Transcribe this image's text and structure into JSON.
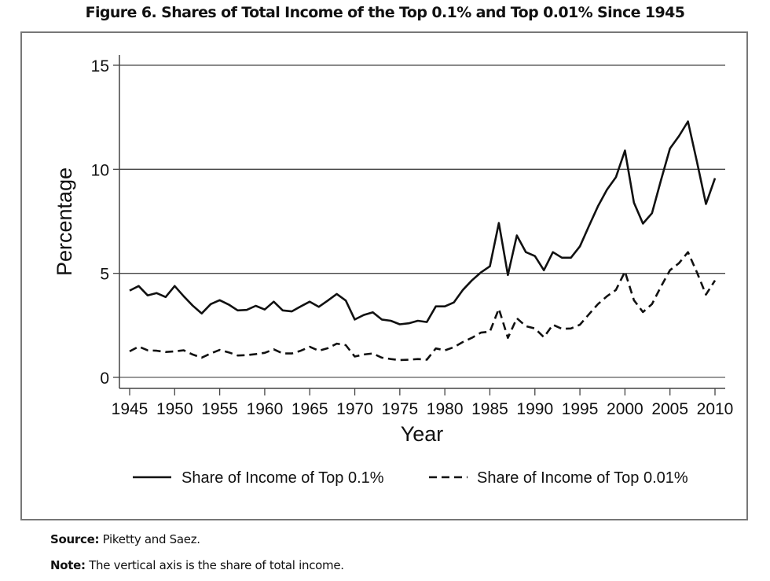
{
  "figure": {
    "title": "Figure 6. Shares of Total Income of the Top 0.1% and Top 0.01% Since 1945",
    "source_label": "Source:",
    "source_text": "Piketty and Saez.",
    "note_label": "Note:",
    "note_text": "The vertical axis is the share of total income."
  },
  "chart_data": {
    "type": "line",
    "title": "Figure 6. Shares of Total Income of the Top 0.1% and Top 0.01% Since 1945",
    "xlabel": "Year",
    "ylabel": "Percentage",
    "xlim": [
      1945,
      2010
    ],
    "ylim": [
      0,
      15
    ],
    "xticks": [
      "1945",
      "1950",
      "1955",
      "1960",
      "1965",
      "1970",
      "1975",
      "1980",
      "1985",
      "1990",
      "1995",
      "2000",
      "2005",
      "2010"
    ],
    "yticks": [
      "0",
      "5",
      "10",
      "15"
    ],
    "grid": "horizontal",
    "legend_position": "bottom",
    "x": [
      1945,
      1946,
      1947,
      1948,
      1949,
      1950,
      1951,
      1952,
      1953,
      1954,
      1955,
      1956,
      1957,
      1958,
      1959,
      1960,
      1961,
      1962,
      1963,
      1964,
      1965,
      1966,
      1967,
      1968,
      1969,
      1970,
      1971,
      1972,
      1973,
      1974,
      1975,
      1976,
      1977,
      1978,
      1979,
      1980,
      1981,
      1982,
      1983,
      1984,
      1985,
      1986,
      1987,
      1988,
      1989,
      1990,
      1991,
      1992,
      1993,
      1994,
      1995,
      1996,
      1997,
      1998,
      1999,
      2000,
      2001,
      2002,
      2003,
      2004,
      2005,
      2006,
      2007,
      2008,
      2009,
      2010
    ],
    "series": [
      {
        "name": "Share of Income of Top 0.1%",
        "style": "solid",
        "values": [
          4.17,
          4.39,
          3.94,
          4.05,
          3.86,
          4.39,
          3.9,
          3.45,
          3.07,
          3.52,
          3.71,
          3.5,
          3.22,
          3.24,
          3.44,
          3.26,
          3.64,
          3.22,
          3.17,
          3.41,
          3.64,
          3.39,
          3.69,
          4.01,
          3.69,
          2.78,
          3.0,
          3.13,
          2.78,
          2.72,
          2.55,
          2.6,
          2.72,
          2.66,
          3.41,
          3.41,
          3.6,
          4.2,
          4.66,
          5.04,
          5.34,
          7.42,
          4.92,
          6.82,
          6.02,
          5.83,
          5.15,
          6.02,
          5.75,
          5.75,
          6.3,
          7.27,
          8.22,
          9.02,
          9.62,
          10.9,
          8.4,
          7.39,
          7.89,
          9.47,
          11.0,
          11.6,
          12.3,
          10.35,
          8.33,
          9.57
        ]
      },
      {
        "name": "Share of Income of Top 0.01%",
        "style": "dashed",
        "values": [
          1.25,
          1.48,
          1.3,
          1.28,
          1.22,
          1.25,
          1.3,
          1.1,
          0.95,
          1.15,
          1.32,
          1.2,
          1.05,
          1.07,
          1.12,
          1.18,
          1.35,
          1.15,
          1.15,
          1.28,
          1.47,
          1.28,
          1.4,
          1.62,
          1.55,
          1.0,
          1.1,
          1.15,
          0.95,
          0.88,
          0.83,
          0.85,
          0.88,
          0.85,
          1.39,
          1.3,
          1.45,
          1.7,
          1.9,
          2.15,
          2.2,
          3.3,
          1.9,
          2.84,
          2.46,
          2.35,
          1.93,
          2.53,
          2.33,
          2.35,
          2.53,
          3.03,
          3.52,
          3.9,
          4.2,
          5.08,
          3.71,
          3.14,
          3.52,
          4.36,
          5.15,
          5.49,
          6.02,
          5.04,
          3.98,
          4.66
        ]
      }
    ]
  }
}
